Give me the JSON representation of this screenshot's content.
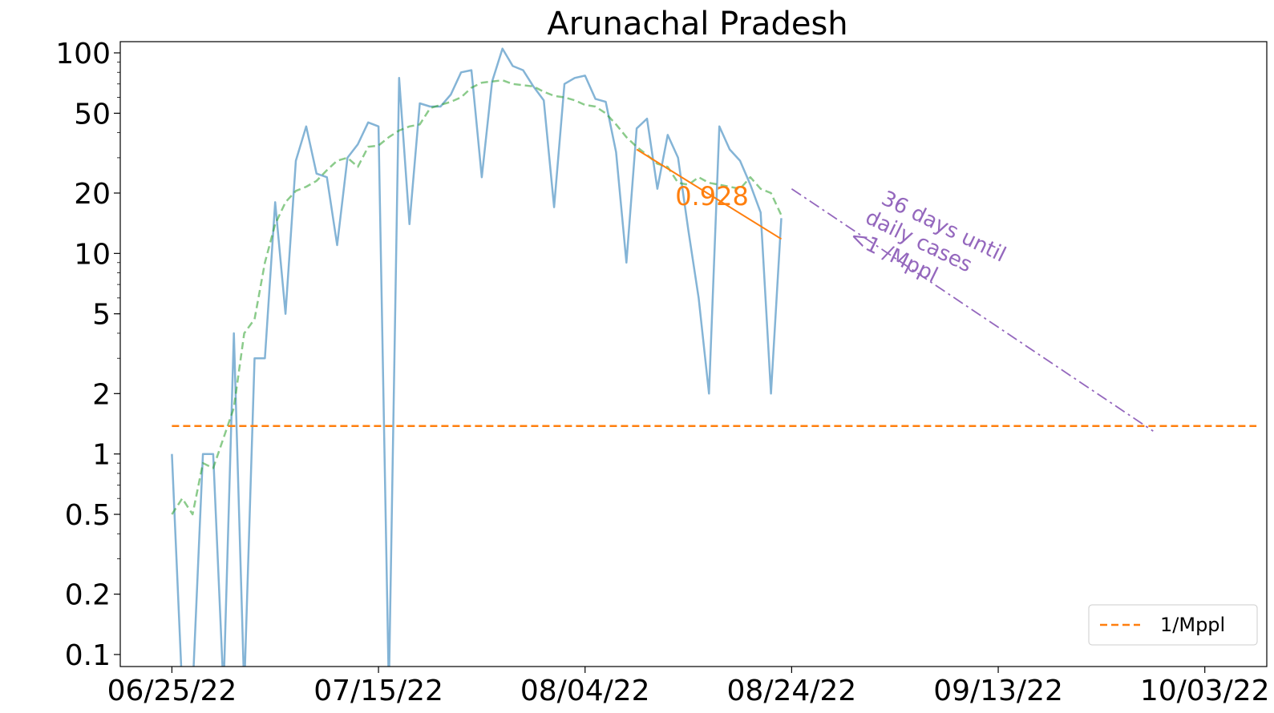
{
  "chart_data": {
    "type": "line",
    "title": "Arunachal Pradesh",
    "xlabel": "",
    "ylabel": "",
    "y_scale": "log",
    "ylim": [
      0.1,
      120
    ],
    "xlim": [
      "2022-06-20",
      "2022-10-09"
    ],
    "grid": false,
    "x_ticks": [
      "2022-06-25",
      "2022-07-15",
      "2022-08-04",
      "2022-08-24",
      "2022-09-13",
      "2022-10-03"
    ],
    "x_tick_labels": [
      "06/25/22",
      "07/15/22",
      "08/04/22",
      "08/24/22",
      "09/13/22",
      "10/03/22"
    ],
    "y_ticks": [
      0.1,
      0.2,
      0.5,
      1,
      2,
      5,
      10,
      20,
      50,
      100
    ],
    "y_tick_labels": [
      "0.1",
      "0.2",
      "0.5",
      "1",
      "2",
      "5",
      "10",
      "20",
      "50",
      "100"
    ],
    "series": [
      {
        "color": "#1f77b4",
        "style": "solid",
        "x": [
          "2022-06-25",
          "2022-06-26",
          "2022-06-27",
          "2022-06-28",
          "2022-06-29",
          "2022-06-30",
          "2022-07-01",
          "2022-07-02",
          "2022-07-03",
          "2022-07-04",
          "2022-07-05",
          "2022-07-06",
          "2022-07-07",
          "2022-07-08",
          "2022-07-09",
          "2022-07-10",
          "2022-07-11",
          "2022-07-12",
          "2022-07-13",
          "2022-07-14",
          "2022-07-15",
          "2022-07-16",
          "2022-07-17",
          "2022-07-18",
          "2022-07-19",
          "2022-07-20",
          "2022-07-21",
          "2022-07-22",
          "2022-07-23",
          "2022-07-24",
          "2022-07-25",
          "2022-07-26",
          "2022-07-27",
          "2022-07-28",
          "2022-07-29",
          "2022-07-30",
          "2022-07-31",
          "2022-08-01",
          "2022-08-02",
          "2022-08-03",
          "2022-08-04",
          "2022-08-05",
          "2022-08-06",
          "2022-08-07",
          "2022-08-08",
          "2022-08-09",
          "2022-08-10",
          "2022-08-11",
          "2022-08-12",
          "2022-08-13",
          "2022-08-14",
          "2022-08-15",
          "2022-08-16",
          "2022-08-17",
          "2022-08-18",
          "2022-08-19",
          "2022-08-20",
          "2022-08-21",
          "2022-08-22",
          "2022-08-23"
        ],
        "values": [
          1,
          0,
          0,
          1,
          1,
          0,
          4,
          0,
          3,
          3,
          18,
          5,
          29,
          43,
          25,
          24,
          11,
          30,
          35,
          45,
          43,
          0,
          75,
          14,
          56,
          54,
          54,
          62,
          80,
          82,
          24,
          72,
          105,
          86,
          82,
          68,
          58,
          17,
          70,
          75,
          77,
          59,
          57,
          32,
          9,
          42,
          47,
          21,
          39,
          30,
          13,
          6,
          2,
          43,
          33,
          29,
          22,
          16,
          2,
          15
        ]
      },
      {
        "color": "#2ca02c",
        "style": "dashed",
        "x": [
          "2022-06-25",
          "2022-06-26",
          "2022-06-27",
          "2022-06-28",
          "2022-06-29",
          "2022-06-30",
          "2022-07-01",
          "2022-07-02",
          "2022-07-03",
          "2022-07-04",
          "2022-07-05",
          "2022-07-06",
          "2022-07-07",
          "2022-07-08",
          "2022-07-09",
          "2022-07-10",
          "2022-07-11",
          "2022-07-12",
          "2022-07-13",
          "2022-07-14",
          "2022-07-15",
          "2022-07-16",
          "2022-07-17",
          "2022-07-18",
          "2022-07-19",
          "2022-07-20",
          "2022-07-21",
          "2022-07-22",
          "2022-07-23",
          "2022-07-24",
          "2022-07-25",
          "2022-07-26",
          "2022-07-27",
          "2022-07-28",
          "2022-07-29",
          "2022-07-30",
          "2022-07-31",
          "2022-08-01",
          "2022-08-02",
          "2022-08-03",
          "2022-08-04",
          "2022-08-05",
          "2022-08-06",
          "2022-08-07",
          "2022-08-08",
          "2022-08-09",
          "2022-08-10",
          "2022-08-11",
          "2022-08-12",
          "2022-08-13",
          "2022-08-14",
          "2022-08-15",
          "2022-08-16",
          "2022-08-17",
          "2022-08-18",
          "2022-08-19",
          "2022-08-20",
          "2022-08-21",
          "2022-08-22",
          "2022-08-23"
        ],
        "values": [
          0.5,
          0.6,
          0.5,
          0.9,
          0.85,
          1.2,
          1.7,
          4.0,
          4.7,
          9,
          14,
          18,
          20.5,
          21.5,
          23,
          26,
          29,
          30,
          27,
          34,
          34.5,
          38,
          41,
          43,
          44,
          53,
          55,
          57,
          60,
          67,
          71,
          72,
          73,
          70,
          69,
          68,
          64,
          61,
          60,
          58,
          55,
          54,
          50,
          44,
          38,
          34,
          31,
          28,
          27,
          22.5,
          22,
          24,
          22.5,
          22,
          21.5,
          21,
          24,
          21,
          20,
          15.5
        ]
      },
      {
        "name": "1/Mppl",
        "color": "#ff7f0e",
        "style": "dashed",
        "x": [
          "2022-06-25",
          "2022-10-08"
        ],
        "values": [
          1.38,
          1.38
        ]
      },
      {
        "color": "#ff7f0e",
        "style": "solid",
        "x": [
          "2022-08-09",
          "2022-08-23"
        ],
        "values": [
          33,
          11.8
        ]
      },
      {
        "color": "#9467bd",
        "style": "dashdot",
        "x": [
          "2022-08-24",
          "2022-09-28"
        ],
        "values": [
          21,
          1.3
        ]
      }
    ],
    "legend": {
      "position": "bottom-right",
      "entries": [
        "1/Mppl"
      ]
    },
    "annotations": {
      "slope_label": "0.928",
      "projection_line1": "36 days until",
      "projection_line2": "daily cases",
      "projection_line3": "<1 /Mppl"
    }
  }
}
